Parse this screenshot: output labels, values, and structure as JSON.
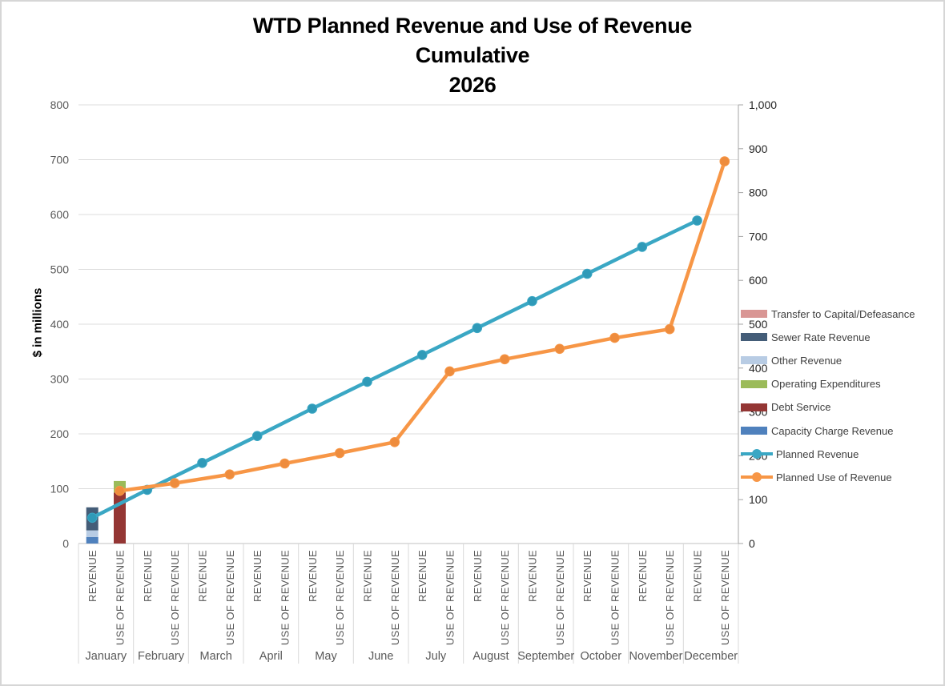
{
  "chart_data": {
    "type": "combo-bar-line",
    "title": "WTD Planned Revenue and Use of Revenue",
    "subtitle": "Cumulative",
    "year": "2026",
    "ylabel": "$ in millions",
    "months": [
      "January",
      "February",
      "March",
      "April",
      "May",
      "June",
      "July",
      "August",
      "September",
      "October",
      "November",
      "December"
    ],
    "category_pair": [
      "REVENUE",
      "USE OF REVENUE"
    ],
    "left_axis": {
      "min": 0,
      "max": 800,
      "ticks": [
        0,
        100,
        200,
        300,
        400,
        500,
        600,
        700,
        800
      ],
      "tick_labels": [
        "0",
        "100",
        "200",
        "300",
        "400",
        "500",
        "600",
        "700",
        "800"
      ]
    },
    "right_axis": {
      "min": 0,
      "max": 1000,
      "ticks": [
        0,
        100,
        200,
        300,
        400,
        500,
        600,
        700,
        800,
        900,
        1000
      ],
      "tick_labels": [
        "0",
        "100",
        "200",
        "300",
        "400",
        "500",
        "600",
        "700",
        "800",
        "900",
        "1,000"
      ]
    },
    "grid": "horizontal",
    "series": [
      {
        "name": "Planned Revenue",
        "type": "line",
        "color": "#3aa7c4",
        "marker_color": "#2f9ab8",
        "category": "REVENUE",
        "values": [
          47,
          98,
          147,
          196,
          246,
          295,
          344,
          393,
          442,
          492,
          541,
          589
        ]
      },
      {
        "name": "Planned Use of Revenue",
        "type": "line",
        "color": "#f79646",
        "marker_color": "#ee8c3d",
        "category": "USE OF REVENUE",
        "values": [
          96,
          110,
          126,
          146,
          165,
          185,
          314,
          336,
          355,
          375,
          391,
          697
        ]
      }
    ],
    "bars": [
      {
        "month": "January",
        "category": "REVENUE",
        "category_index": 0,
        "segments": [
          {
            "name": "Capacity Charge Revenue",
            "color": "#4f81bd",
            "value": 12
          },
          {
            "name": "Other Revenue",
            "color": "#b8cce4",
            "value": 12
          },
          {
            "name": "Sewer Rate Revenue",
            "color": "#445d78",
            "value": 42
          }
        ]
      },
      {
        "month": "January",
        "category": "USE OF REVENUE",
        "category_index": 1,
        "segments": [
          {
            "name": "Debt Service",
            "color": "#943634",
            "value": 93
          },
          {
            "name": "Operating Expenditures",
            "color": "#9bbb59",
            "value": 21
          },
          {
            "name": "Transfer to Capital/Defeasance",
            "color": "#d99694",
            "value": 0
          }
        ]
      }
    ],
    "legend": [
      {
        "label": "Transfer to Capital/Defeasance",
        "type": "bar",
        "color": "#d99694"
      },
      {
        "label": "Sewer Rate Revenue",
        "type": "bar",
        "color": "#445d78"
      },
      {
        "label": "Other Revenue",
        "type": "bar",
        "color": "#b8cce4"
      },
      {
        "label": "Operating Expenditures",
        "type": "bar",
        "color": "#9bbb59"
      },
      {
        "label": "Debt Service",
        "type": "bar",
        "color": "#943634"
      },
      {
        "label": "Capacity Charge Revenue",
        "type": "bar",
        "color": "#4f81bd"
      },
      {
        "label": "Planned Revenue",
        "type": "line",
        "color": "#3aa7c4"
      },
      {
        "label": "Planned Use of Revenue",
        "type": "line",
        "color": "#f79646"
      }
    ],
    "legend_position": "right",
    "colors": {
      "gridline": "#dcdcdc",
      "axis_line": "#c0c0c0",
      "right_axis_line": "#a6a6a6",
      "separator": "#d9d9d9"
    }
  }
}
